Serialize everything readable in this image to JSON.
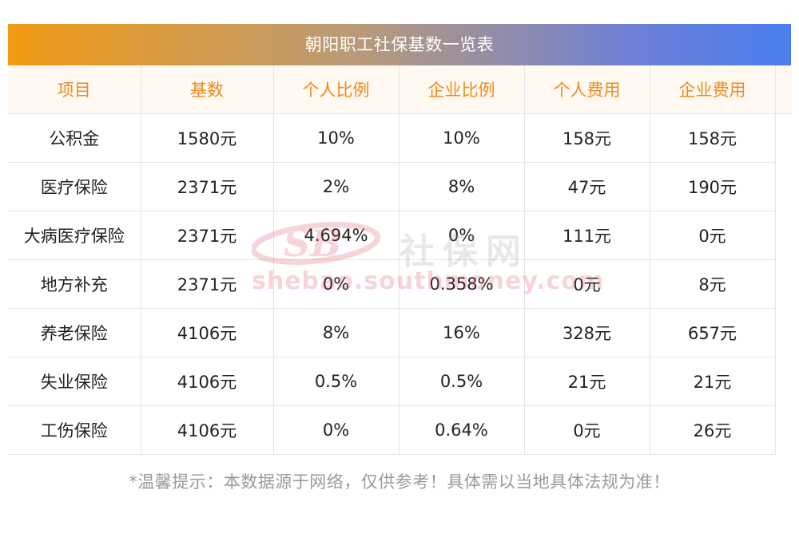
{
  "title": "朝阳职工社保基数一览表",
  "headers": [
    "项目",
    "基数",
    "个人比例",
    "企业比例",
    "个人费用",
    "企业费用"
  ],
  "rows": [
    [
      "公积金",
      "1580元",
      "10%",
      "10%",
      "158元",
      "158元"
    ],
    [
      "医疗保险",
      "2371元",
      "2%",
      "8%",
      "47元",
      "190元"
    ],
    [
      "大病医疗保险",
      "2371元",
      "4.694%",
      "0%",
      "111元",
      "0元"
    ],
    [
      "地方补充",
      "2371元",
      "0%",
      "0.358%",
      "0元",
      "8元"
    ],
    [
      "养老保险",
      "4106元",
      "8%",
      "16%",
      "328元",
      "657元"
    ],
    [
      "失业保险",
      "4106元",
      "0.5%",
      "0.5%",
      "21元",
      "21元"
    ],
    [
      "工伤保险",
      "4106元",
      "0%",
      "0.64%",
      "0元",
      "26元"
    ]
  ],
  "watermark": {
    "logo_text": "SB",
    "brand": "社保网",
    "url": "shebao.southmoney.com"
  },
  "footnote": "*温馨提示：本数据源于网络，仅供参考！具体需以当地具体法规为准！",
  "colors": {
    "header_text": "#f08a1c",
    "header_bg": "#fff9f1",
    "title_gradient_start": "#f29a12",
    "title_gradient_end": "#4a7ef0",
    "watermark_red": "#d94050",
    "footnote": "#9a9a9a"
  }
}
